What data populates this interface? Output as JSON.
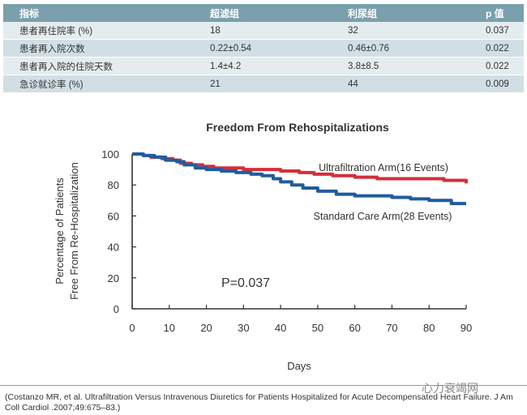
{
  "table": {
    "headers": [
      "指标",
      "超滤组",
      "利尿组",
      "p 值"
    ],
    "rows": [
      [
        "患者再住院率 (%)",
        "18",
        "32",
        "0.037"
      ],
      [
        "患者再入院次数",
        "0.22±0.54",
        "0.46±0.76",
        "0.022"
      ],
      [
        "患者再入院的住院天数",
        "1.4±4.2",
        "3.8±8.5",
        "0.022"
      ],
      [
        "急诊就诊率 (%)",
        "21",
        "44",
        "0.009"
      ]
    ]
  },
  "colors": {
    "ultrafiltration": "#d32f3a",
    "standard": "#1f5c9e",
    "header_bg": "#7a9fad"
  },
  "chart_data": {
    "type": "line",
    "title": "Freedom From Rehospitalizations",
    "xlabel": "Days",
    "ylabel_line1": "Percentage of Patients",
    "ylabel_line2": "Free From Re-Hospitalization",
    "xlim": [
      0,
      90
    ],
    "ylim": [
      0,
      100
    ],
    "xticks": [
      0,
      10,
      20,
      30,
      40,
      50,
      60,
      70,
      80,
      90
    ],
    "yticks": [
      0,
      20,
      40,
      60,
      80,
      100
    ],
    "annotation": "P=0.037",
    "series": [
      {
        "name": "Ultrafiltration Arm(16 Events)",
        "color": "#d32f3a",
        "x": [
          0,
          3,
          5,
          8,
          11,
          13,
          16,
          19,
          22,
          25,
          30,
          34,
          36,
          40,
          45,
          49,
          54,
          60,
          66,
          72,
          80,
          84,
          87,
          88,
          90
        ],
        "y": [
          100,
          99,
          98,
          97,
          96,
          94,
          93,
          92,
          91,
          91,
          90,
          90,
          90,
          89,
          88,
          87,
          86,
          85,
          84,
          84,
          84,
          83,
          83,
          83,
          81
        ]
      },
      {
        "name": "Standard Care Arm(28 Events)",
        "color": "#1f5c9e",
        "x": [
          0,
          3,
          6,
          9,
          12,
          14,
          17,
          20,
          24,
          28,
          32,
          35,
          38,
          40,
          43,
          46,
          50,
          55,
          60,
          70,
          75,
          80,
          86,
          88,
          90
        ],
        "y": [
          100,
          99,
          98,
          96,
          95,
          93,
          91,
          90,
          89,
          88,
          87,
          86,
          84,
          82,
          80,
          78,
          76,
          74,
          73,
          72,
          71,
          70,
          68,
          68,
          68
        ]
      }
    ]
  },
  "reference": "(Costanzo MR, et al. Ultrafiltration Versus Intravenous Diuretics for Patients Hospitalized for Acute Decompensated Heart Failure. J Am Coll Cardiol .2007;49:675–83.)",
  "watermark": "心力衰竭网"
}
